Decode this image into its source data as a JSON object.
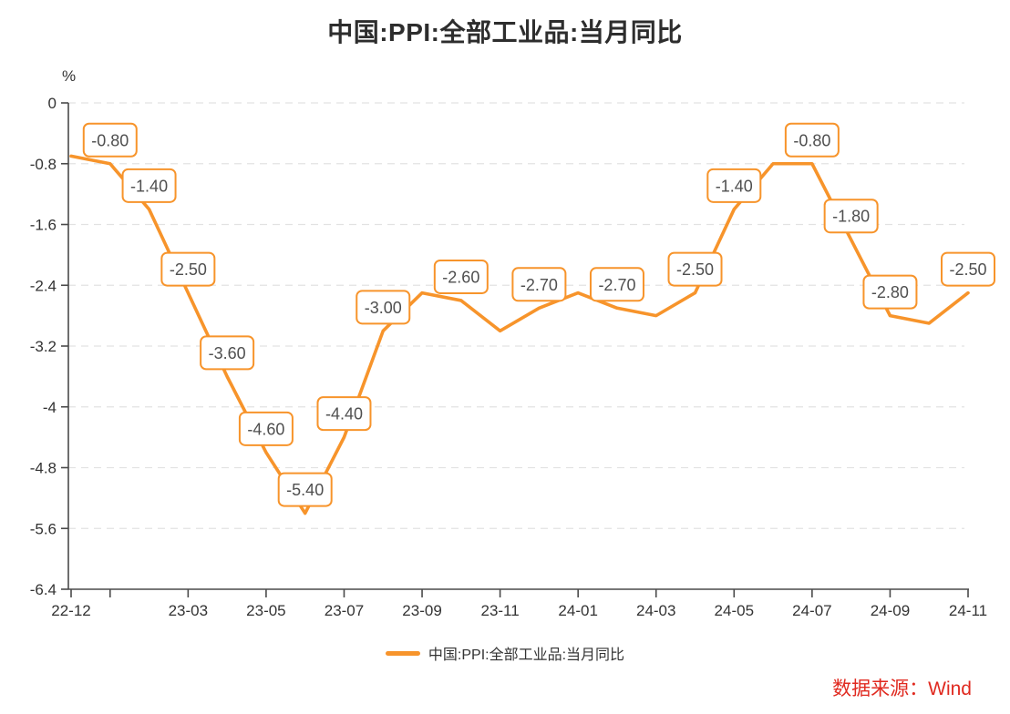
{
  "chart": {
    "title": "中国:PPI:全部工业品:当月同比",
    "y_unit": "%",
    "legend_label": "中国:PPI:全部工业品:当月同比"
  },
  "footer": {
    "source": "数据来源：Wind"
  },
  "colors": {
    "line": "#F7942B",
    "label_border": "#F7942B",
    "label_text": "#4f4f4f",
    "axis": "#4a4a4a",
    "grid": "#e2e2e2",
    "title": "#2d2d2d",
    "source_red": "#E02A20"
  },
  "chart_data": {
    "type": "line",
    "title": "中国:PPI:全部工业品:当月同比",
    "ylabel": "%",
    "legend": [
      "中国:PPI:全部工业品:当月同比"
    ],
    "legend_position": "bottom",
    "grid": "dashed-horizontal",
    "x": [
      "22-12",
      "23-01",
      "23-02",
      "23-03",
      "23-04",
      "23-05",
      "23-06",
      "23-07",
      "23-08",
      "23-09",
      "23-10",
      "23-11",
      "23-12",
      "24-01",
      "24-02",
      "24-03",
      "24-04",
      "24-05",
      "24-06",
      "24-07",
      "24-08",
      "24-09",
      "24-10",
      "24-11"
    ],
    "values": [
      -0.7,
      -0.8,
      -1.4,
      -2.5,
      -3.6,
      -4.6,
      -5.4,
      -4.4,
      -3.0,
      -2.5,
      -2.6,
      -3.0,
      -2.7,
      -2.5,
      -2.7,
      -2.8,
      -2.5,
      -1.4,
      -0.8,
      -0.8,
      -1.8,
      -2.8,
      -2.9,
      -2.5
    ],
    "point_labels": [
      "",
      "-0.80",
      "-1.40",
      "-2.50",
      "-3.60",
      "-4.60",
      "-5.40",
      "-4.40",
      "-3.00",
      "",
      "-2.60",
      "",
      "-2.70",
      "",
      "-2.70",
      "",
      "-2.50",
      "-1.40",
      "",
      "-0.80",
      "-1.80",
      "-2.80",
      "",
      "-2.50"
    ],
    "x_ticks": [
      {
        "index": 0,
        "label": "22-12"
      },
      {
        "index": 1,
        "label": ""
      },
      {
        "index": 3,
        "label": "23-03"
      },
      {
        "index": 5,
        "label": "23-05"
      },
      {
        "index": 7,
        "label": "23-07"
      },
      {
        "index": 9,
        "label": "23-09"
      },
      {
        "index": 11,
        "label": "23-11"
      },
      {
        "index": 13,
        "label": "24-01"
      },
      {
        "index": 15,
        "label": "24-03"
      },
      {
        "index": 17,
        "label": "24-05"
      },
      {
        "index": 19,
        "label": "24-07"
      },
      {
        "index": 21,
        "label": "24-09"
      },
      {
        "index": 23,
        "label": "24-11"
      }
    ],
    "y_ticks": [
      0,
      -0.8,
      -1.6,
      -2.4,
      -3.2,
      -4,
      -4.8,
      -5.6,
      -6.4
    ],
    "y_tick_labels": [
      "0",
      "-0.8",
      "-1.6",
      "-2.4",
      "-3.2",
      "-4",
      "-4.8",
      "-5.6",
      "-6.4"
    ],
    "ylim": [
      -6.4,
      0
    ]
  }
}
